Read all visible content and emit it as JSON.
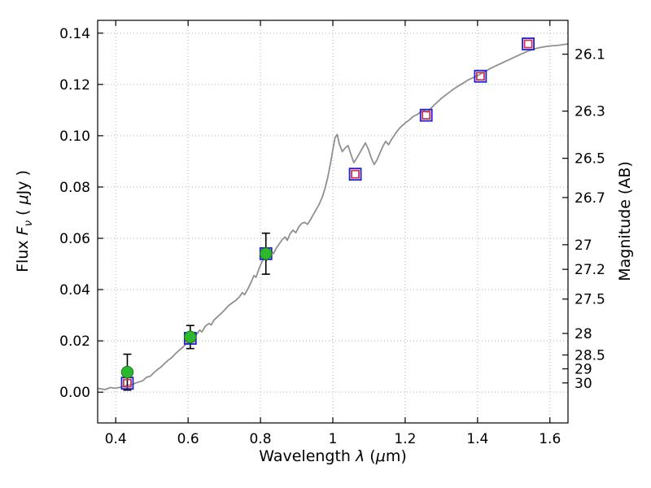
{
  "chart_data": {
    "type": "line",
    "title": "",
    "xlabel": "Wavelength λ (μm)",
    "ylabel_left": "Flux Fν ( μJy )",
    "ylabel_right": "Magnitude (AB)",
    "xlim": [
      0.35,
      1.65
    ],
    "ylim": [
      -0.012,
      0.145
    ],
    "grid": true,
    "grid_style": "dotted",
    "grid_color": "#b3b3b3",
    "labels": {
      "x": {
        "pre": "Wavelength ",
        "sym": "λ",
        "post": " (",
        "mu": "μ",
        "end": "m)"
      },
      "y_left": {
        "pre": "Flux ",
        "f": "F",
        "sub": "ν",
        "open": " ( ",
        "mu": "μ",
        "end": "Jy )"
      },
      "y_right": "Magnitude (AB)"
    },
    "x_ticks": [
      {
        "v": 0.4,
        "label": "0.4"
      },
      {
        "v": 0.6,
        "label": "0.6"
      },
      {
        "v": 0.8,
        "label": "0.8"
      },
      {
        "v": 1.0,
        "label": "1"
      },
      {
        "v": 1.2,
        "label": "1.2"
      },
      {
        "v": 1.4,
        "label": "1.4"
      },
      {
        "v": 1.6,
        "label": "1.6"
      }
    ],
    "y_ticks_left": [
      {
        "v": 0.0,
        "label": "0.00"
      },
      {
        "v": 0.02,
        "label": "0.02"
      },
      {
        "v": 0.04,
        "label": "0.04"
      },
      {
        "v": 0.06,
        "label": "0.06"
      },
      {
        "v": 0.08,
        "label": "0.08"
      },
      {
        "v": 0.1,
        "label": "0.10"
      },
      {
        "v": 0.12,
        "label": "0.12"
      },
      {
        "v": 0.14,
        "label": "0.14"
      }
    ],
    "y_ticks_right": [
      {
        "flux": 0.1318,
        "label": "26.1"
      },
      {
        "flux": 0.1096,
        "label": "26.3"
      },
      {
        "flux": 0.0912,
        "label": "26.5"
      },
      {
        "flux": 0.0759,
        "label": "26.7"
      },
      {
        "flux": 0.0575,
        "label": "27"
      },
      {
        "flux": 0.0479,
        "label": "27.2"
      },
      {
        "flux": 0.0363,
        "label": "27.5"
      },
      {
        "flux": 0.0229,
        "label": "28"
      },
      {
        "flux": 0.0145,
        "label": "28.5"
      },
      {
        "flux": 0.0091,
        "label": "29"
      },
      {
        "flux": 0.0036,
        "label": "30"
      }
    ],
    "series": [
      {
        "name": "model-spectrum",
        "type": "line",
        "color": "#909090",
        "points": [
          [
            0.35,
            0.0015
          ],
          [
            0.37,
            0.001
          ],
          [
            0.385,
            0.0018
          ],
          [
            0.4,
            0.0015
          ],
          [
            0.415,
            0.002
          ],
          [
            0.43,
            0.0026
          ],
          [
            0.445,
            0.003
          ],
          [
            0.46,
            0.0038
          ],
          [
            0.475,
            0.0045
          ],
          [
            0.485,
            0.0058
          ],
          [
            0.495,
            0.0062
          ],
          [
            0.505,
            0.0075
          ],
          [
            0.515,
            0.0088
          ],
          [
            0.525,
            0.0098
          ],
          [
            0.535,
            0.0112
          ],
          [
            0.545,
            0.0125
          ],
          [
            0.555,
            0.0135
          ],
          [
            0.565,
            0.015
          ],
          [
            0.575,
            0.0163
          ],
          [
            0.585,
            0.0175
          ],
          [
            0.595,
            0.0188
          ],
          [
            0.605,
            0.0205
          ],
          [
            0.615,
            0.0218
          ],
          [
            0.625,
            0.0228
          ],
          [
            0.632,
            0.0242
          ],
          [
            0.638,
            0.0235
          ],
          [
            0.648,
            0.0258
          ],
          [
            0.658,
            0.0268
          ],
          [
            0.664,
            0.0262
          ],
          [
            0.672,
            0.0282
          ],
          [
            0.682,
            0.0295
          ],
          [
            0.692,
            0.0308
          ],
          [
            0.702,
            0.0322
          ],
          [
            0.712,
            0.0338
          ],
          [
            0.722,
            0.0348
          ],
          [
            0.732,
            0.0358
          ],
          [
            0.742,
            0.0372
          ],
          [
            0.75,
            0.0388
          ],
          [
            0.756,
            0.038
          ],
          [
            0.766,
            0.0405
          ],
          [
            0.774,
            0.0428
          ],
          [
            0.782,
            0.0455
          ],
          [
            0.788,
            0.0448
          ],
          [
            0.796,
            0.0482
          ],
          [
            0.804,
            0.0508
          ],
          [
            0.81,
            0.0522
          ],
          [
            0.816,
            0.0512
          ],
          [
            0.822,
            0.0538
          ],
          [
            0.828,
            0.0552
          ],
          [
            0.836,
            0.054
          ],
          [
            0.844,
            0.0562
          ],
          [
            0.852,
            0.0578
          ],
          [
            0.86,
            0.0595
          ],
          [
            0.868,
            0.0605
          ],
          [
            0.874,
            0.0592
          ],
          [
            0.882,
            0.0618
          ],
          [
            0.89,
            0.0632
          ],
          [
            0.898,
            0.0622
          ],
          [
            0.906,
            0.0645
          ],
          [
            0.914,
            0.0658
          ],
          [
            0.922,
            0.0662
          ],
          [
            0.93,
            0.0655
          ],
          [
            0.938,
            0.0672
          ],
          [
            0.946,
            0.0692
          ],
          [
            0.954,
            0.0712
          ],
          [
            0.962,
            0.0732
          ],
          [
            0.97,
            0.0758
          ],
          [
            0.978,
            0.0792
          ],
          [
            0.986,
            0.0838
          ],
          [
            0.994,
            0.0895
          ],
          [
            1.0,
            0.0945
          ],
          [
            1.006,
            0.0992
          ],
          [
            1.012,
            0.1005
          ],
          [
            1.018,
            0.0968
          ],
          [
            1.026,
            0.0938
          ],
          [
            1.034,
            0.0952
          ],
          [
            1.042,
            0.0962
          ],
          [
            1.05,
            0.0928
          ],
          [
            1.058,
            0.0895
          ],
          [
            1.066,
            0.0912
          ],
          [
            1.074,
            0.0932
          ],
          [
            1.082,
            0.0952
          ],
          [
            1.09,
            0.0972
          ],
          [
            1.098,
            0.0948
          ],
          [
            1.106,
            0.0915
          ],
          [
            1.114,
            0.0888
          ],
          [
            1.122,
            0.0905
          ],
          [
            1.13,
            0.0932
          ],
          [
            1.138,
            0.0958
          ],
          [
            1.146,
            0.0978
          ],
          [
            1.154,
            0.0965
          ],
          [
            1.162,
            0.0985
          ],
          [
            1.17,
            0.1002
          ],
          [
            1.178,
            0.1018
          ],
          [
            1.186,
            0.1032
          ],
          [
            1.194,
            0.1042
          ],
          [
            1.202,
            0.1052
          ],
          [
            1.212,
            0.1062
          ],
          [
            1.222,
            0.1075
          ],
          [
            1.232,
            0.1082
          ],
          [
            1.242,
            0.1092
          ],
          [
            1.252,
            0.1098
          ],
          [
            1.262,
            0.1092
          ],
          [
            1.272,
            0.1108
          ],
          [
            1.282,
            0.1122
          ],
          [
            1.292,
            0.1135
          ],
          [
            1.302,
            0.1148
          ],
          [
            1.315,
            0.1162
          ],
          [
            1.33,
            0.1178
          ],
          [
            1.345,
            0.1192
          ],
          [
            1.36,
            0.1205
          ],
          [
            1.375,
            0.1218
          ],
          [
            1.39,
            0.1228
          ],
          [
            1.405,
            0.1238
          ],
          [
            1.42,
            0.125
          ],
          [
            1.435,
            0.1262
          ],
          [
            1.45,
            0.1272
          ],
          [
            1.465,
            0.1282
          ],
          [
            1.48,
            0.1292
          ],
          [
            1.5,
            0.1305
          ],
          [
            1.52,
            0.1318
          ],
          [
            1.54,
            0.133
          ],
          [
            1.56,
            0.134
          ],
          [
            1.58,
            0.1346
          ],
          [
            1.6,
            0.135
          ],
          [
            1.62,
            0.1352
          ],
          [
            1.65,
            0.1358
          ]
        ]
      },
      {
        "name": "model-photometry",
        "type": "square",
        "outer_color": "#1f1fcc",
        "inner_color": "#cc3355",
        "points": [
          [
            0.432,
            0.0035
          ],
          [
            0.606,
            0.021
          ],
          [
            0.815,
            0.054
          ],
          [
            1.062,
            0.085
          ],
          [
            1.258,
            0.108
          ],
          [
            1.408,
            0.1232
          ],
          [
            1.54,
            0.1358
          ]
        ]
      },
      {
        "name": "observed-photometry",
        "type": "circle-errorbar",
        "color": "#2eb82e",
        "edge_color": "#1a7a1a",
        "error_color": "#000000",
        "points": [
          {
            "x": 0.432,
            "y": 0.0078,
            "yerr": 0.007
          },
          {
            "x": 0.606,
            "y": 0.0215,
            "yerr": 0.0045
          },
          {
            "x": 0.815,
            "y": 0.054,
            "yerr": 0.008
          }
        ]
      }
    ]
  }
}
